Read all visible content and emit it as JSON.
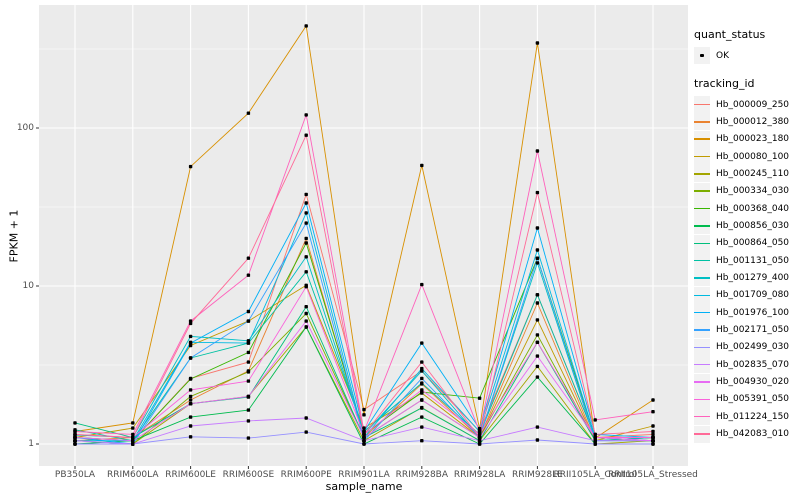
{
  "chart_data": {
    "type": "line",
    "title": "",
    "xlabel": "sample_name",
    "ylabel": "FPKM + 1",
    "scale_y": "log10",
    "ylim": [
      1,
      500
    ],
    "yticks": [
      1,
      10,
      100
    ],
    "y_minor": [
      3.162,
      31.62,
      316.2
    ],
    "grid": true,
    "legend_position": "right",
    "samples": [
      "PB350LA",
      "RRIM600LA",
      "RRIM600LE",
      "RRIM600SE",
      "RRIM600PE",
      "RRIM901LA",
      "RRIM928BA",
      "RRIM928LA",
      "RRIM928LE",
      "RRII105LA_Control",
      "RRII105LA_Stressed"
    ],
    "series": [
      {
        "name": "Hb_000009_250",
        "color": "#F8766D",
        "values": [
          1.1,
          1.05,
          2.6,
          3.3,
          38.0,
          1.65,
          2.9,
          1.2,
          8.8,
          1.1,
          1.15
        ]
      },
      {
        "name": "Hb_000012_380",
        "color": "#EA8331",
        "values": [
          1.05,
          1.1,
          1.9,
          2.9,
          20.0,
          1.1,
          2.4,
          1.1,
          7.8,
          1.05,
          1.1
        ]
      },
      {
        "name": "Hb_000023_180",
        "color": "#D89000",
        "values": [
          1.2,
          1.36,
          57.0,
          124.0,
          443.0,
          1.53,
          58.0,
          1.25,
          345.0,
          1.09,
          1.9
        ]
      },
      {
        "name": "Hb_000080_100",
        "color": "#C09B00",
        "values": [
          1.1,
          1.26,
          4.2,
          6.0,
          10.1,
          1.26,
          2.1,
          1.1,
          6.1,
          1.05,
          1.3
        ]
      },
      {
        "name": "Hb_000245_110",
        "color": "#A3A500",
        "values": [
          1.0,
          1.0,
          1.8,
          2.0,
          5.5,
          1.05,
          1.7,
          1.05,
          3.1,
          1.0,
          1.05
        ]
      },
      {
        "name": "Hb_000334_030",
        "color": "#7CAE00",
        "values": [
          1.05,
          1.0,
          2.0,
          2.86,
          6.7,
          1.1,
          1.9,
          1.1,
          4.9,
          1.05,
          1.1
        ]
      },
      {
        "name": "Hb_000368_040",
        "color": "#39B600",
        "values": [
          1.1,
          1.05,
          2.58,
          3.8,
          18.7,
          1.15,
          2.13,
          1.95,
          15.0,
          1.1,
          1.05
        ]
      },
      {
        "name": "Hb_000856_030",
        "color": "#00BB4E",
        "values": [
          1.0,
          1.05,
          1.48,
          1.64,
          5.5,
          1.0,
          1.48,
          1.0,
          2.65,
          1.0,
          1.0
        ]
      },
      {
        "name": "Hb_000864_050",
        "color": "#00BF7D",
        "values": [
          1.36,
          1.1,
          1.8,
          1.98,
          7.4,
          1.1,
          1.69,
          1.05,
          4.4,
          1.05,
          1.05
        ]
      },
      {
        "name": "Hb_001131_050",
        "color": "#00C1A3",
        "values": [
          1.23,
          1.05,
          3.5,
          4.35,
          12.3,
          1.2,
          2.43,
          1.15,
          8.8,
          1.1,
          1.1
        ]
      },
      {
        "name": "Hb_001279_400",
        "color": "#00BFC4",
        "values": [
          1.14,
          1.1,
          4.8,
          4.5,
          15.3,
          1.15,
          2.9,
          1.1,
          14.0,
          1.05,
          1.1
        ]
      },
      {
        "name": "Hb_001709_080",
        "color": "#00BAE0",
        "values": [
          1.05,
          1.05,
          4.4,
          4.35,
          29.0,
          1.1,
          3.0,
          1.2,
          16.9,
          1.1,
          1.05
        ]
      },
      {
        "name": "Hb_001976_100",
        "color": "#00B0F6",
        "values": [
          1.1,
          1.0,
          4.35,
          6.9,
          33.5,
          1.2,
          4.35,
          1.25,
          23.3,
          1.15,
          1.1
        ]
      },
      {
        "name": "Hb_002171_050",
        "color": "#35A2FF",
        "values": [
          1.05,
          1.0,
          3.5,
          6.0,
          25.0,
          1.05,
          2.6,
          1.1,
          15.0,
          1.05,
          1.05
        ]
      },
      {
        "name": "Hb_002499_030",
        "color": "#9590FF",
        "values": [
          1.0,
          1.0,
          1.11,
          1.09,
          1.19,
          1.0,
          1.05,
          1.0,
          1.06,
          1.0,
          1.0
        ]
      },
      {
        "name": "Hb_002835_070",
        "color": "#C77CFF",
        "values": [
          1.05,
          1.0,
          1.3,
          1.4,
          1.46,
          1.05,
          1.28,
          1.05,
          1.28,
          1.05,
          1.05
        ]
      },
      {
        "name": "Hb_004930_020",
        "color": "#E76BF3",
        "values": [
          1.1,
          1.05,
          1.8,
          2.0,
          6.0,
          1.1,
          1.9,
          1.1,
          3.6,
          1.1,
          1.05
        ]
      },
      {
        "name": "Hb_005391_050",
        "color": "#FA62DB",
        "values": [
          1.15,
          1.1,
          2.2,
          2.5,
          9.9,
          1.15,
          2.2,
          1.15,
          4.4,
          1.1,
          1.1
        ]
      },
      {
        "name": "Hb_011224_150",
        "color": "#FF62BC",
        "values": [
          1.2,
          1.15,
          6.0,
          11.7,
          121.0,
          1.2,
          10.2,
          1.2,
          71.5,
          1.42,
          1.6
        ]
      },
      {
        "name": "Hb_042083_010",
        "color": "#FF6A98",
        "values": [
          1.15,
          1.1,
          5.8,
          15.0,
          90.0,
          1.15,
          3.3,
          1.1,
          39.0,
          1.15,
          1.2
        ]
      }
    ],
    "legend": {
      "quant_title": "quant_status",
      "quant_items": [
        {
          "label": "OK",
          "shape": "point",
          "color": "#000000"
        }
      ],
      "tracking_title": "tracking_id"
    },
    "colors": {
      "panel_bg": "#EBEBEB",
      "grid": "#FFFFFF",
      "tick_label": "#4D4D4D",
      "key_bg": "#F2F2F2",
      "point": "#000000"
    }
  }
}
